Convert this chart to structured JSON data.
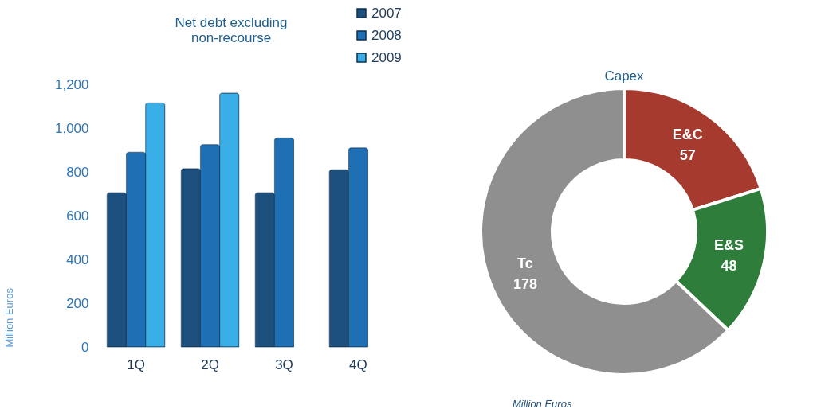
{
  "chart_data": [
    {
      "type": "bar",
      "title": "Net debt excluding non-recourse",
      "ylabel": "Million Euros",
      "categories": [
        "1Q",
        "2Q",
        "3Q",
        "4Q"
      ],
      "series": [
        {
          "name": "2007",
          "color": "#1d4f7c",
          "values": [
            705,
            815,
            705,
            810
          ]
        },
        {
          "name": "2008",
          "color": "#1f6fb5",
          "values": [
            890,
            925,
            955,
            910
          ]
        },
        {
          "name": "2009",
          "color": "#3aaee6",
          "values": [
            1115,
            1160,
            null,
            null
          ]
        }
      ],
      "ylim": [
        0,
        1200
      ],
      "yticks": [
        0,
        200,
        400,
        600,
        800,
        {
          "value": 1000,
          "label": "1,000"
        },
        {
          "value": 1200,
          "label": "1,200"
        }
      ],
      "legend": "top right"
    },
    {
      "type": "donut",
      "title": "Capex",
      "categories": [
        "E&C",
        "E&S",
        "Tc"
      ],
      "values": [
        57,
        48,
        178
      ],
      "colors": [
        "#a63a2e",
        "#2e7d3a",
        "#8f8f8f"
      ],
      "data_labels": true,
      "annotations": [
        "Million Euros"
      ]
    }
  ]
}
